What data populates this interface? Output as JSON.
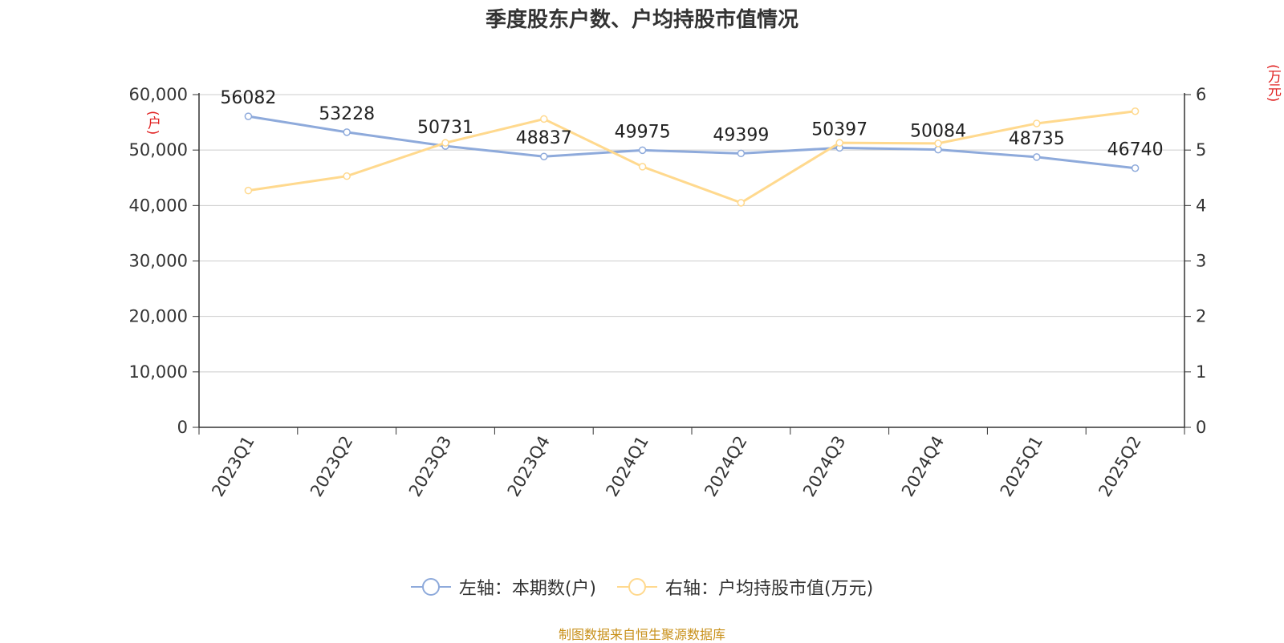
{
  "chart_data": {
    "type": "line",
    "title": "季度股东户数、户均持股市值情况",
    "categories": [
      "2023Q1",
      "2023Q2",
      "2023Q3",
      "2023Q4",
      "2024Q1",
      "2024Q2",
      "2024Q3",
      "2024Q4",
      "2025Q1",
      "2025Q2"
    ],
    "left_axis": {
      "unit": "(户)",
      "ylim": [
        0,
        60000
      ],
      "ticks": [
        "0",
        "10,000",
        "20,000",
        "30,000",
        "40,000",
        "50,000",
        "60,000"
      ]
    },
    "right_axis": {
      "unit": "(万元)",
      "ylim": [
        0,
        6
      ],
      "ticks": [
        "0",
        "1",
        "2",
        "3",
        "4",
        "5",
        "6"
      ]
    },
    "series": [
      {
        "name": "左轴：本期数(户)",
        "axis": "left",
        "color": "#8eaadb",
        "values": [
          56082,
          53228,
          50731,
          48837,
          49975,
          49399,
          50397,
          50084,
          48735,
          46740
        ],
        "labels": [
          "56082",
          "53228",
          "50731",
          "48837",
          "49975",
          "49399",
          "50397",
          "50084",
          "48735",
          "46740"
        ]
      },
      {
        "name": "右轴：户均持股市值(万元)",
        "axis": "right",
        "color": "#ffd98e",
        "values": [
          4.27,
          4.53,
          5.13,
          5.56,
          4.7,
          4.05,
          5.13,
          5.12,
          5.48,
          5.7
        ]
      }
    ],
    "grid": true,
    "legend_position": "bottom-center"
  },
  "source": "制图数据来自恒生聚源数据库"
}
